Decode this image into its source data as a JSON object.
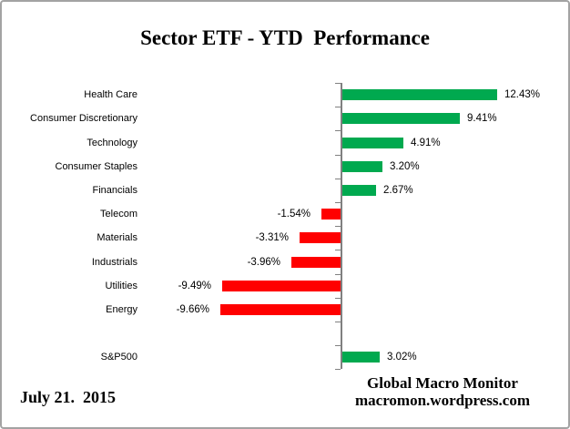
{
  "footer": {
    "date": "July 21.  2015",
    "credit_line1": "Global Macro Monitor",
    "credit_line2": "macromon.wordpress.com"
  },
  "colors": {
    "positive_bar": "#00a94f",
    "negative_bar": "#ff0000",
    "axis": "#808080",
    "frame_border": "#a3a3a3",
    "text": "#000000"
  },
  "chart_data": {
    "type": "bar",
    "orientation": "horizontal",
    "title": "Sector ETF - YTD  Performance",
    "xlabel": "",
    "ylabel": "",
    "value_unit": "percent",
    "baseline": 0,
    "grid": false,
    "legend": null,
    "value_range_hint": [
      -10,
      13
    ],
    "bar_label_position": "outside-end",
    "items": [
      {
        "category": "Health Care",
        "value": 12.43,
        "label": "12.43%"
      },
      {
        "category": "Consumer Discretionary",
        "value": 9.41,
        "label": "9.41%"
      },
      {
        "category": "Technology",
        "value": 4.91,
        "label": "4.91%"
      },
      {
        "category": "Consumer Staples",
        "value": 3.2,
        "label": "3.20%"
      },
      {
        "category": "Financials",
        "value": 2.67,
        "label": "2.67%"
      },
      {
        "category": "Telecom",
        "value": -1.54,
        "label": "-1.54%"
      },
      {
        "category": "Materials",
        "value": -3.31,
        "label": "-3.31%"
      },
      {
        "category": "Industrials",
        "value": -3.96,
        "label": "-3.96%"
      },
      {
        "category": "Utilities",
        "value": -9.49,
        "label": "-9.49%"
      },
      {
        "category": "Energy",
        "value": -9.66,
        "label": "-9.66%"
      },
      {
        "category": "",
        "value": null,
        "label": ""
      },
      {
        "category": "S&P500",
        "value": 3.02,
        "label": "3.02%"
      }
    ]
  }
}
